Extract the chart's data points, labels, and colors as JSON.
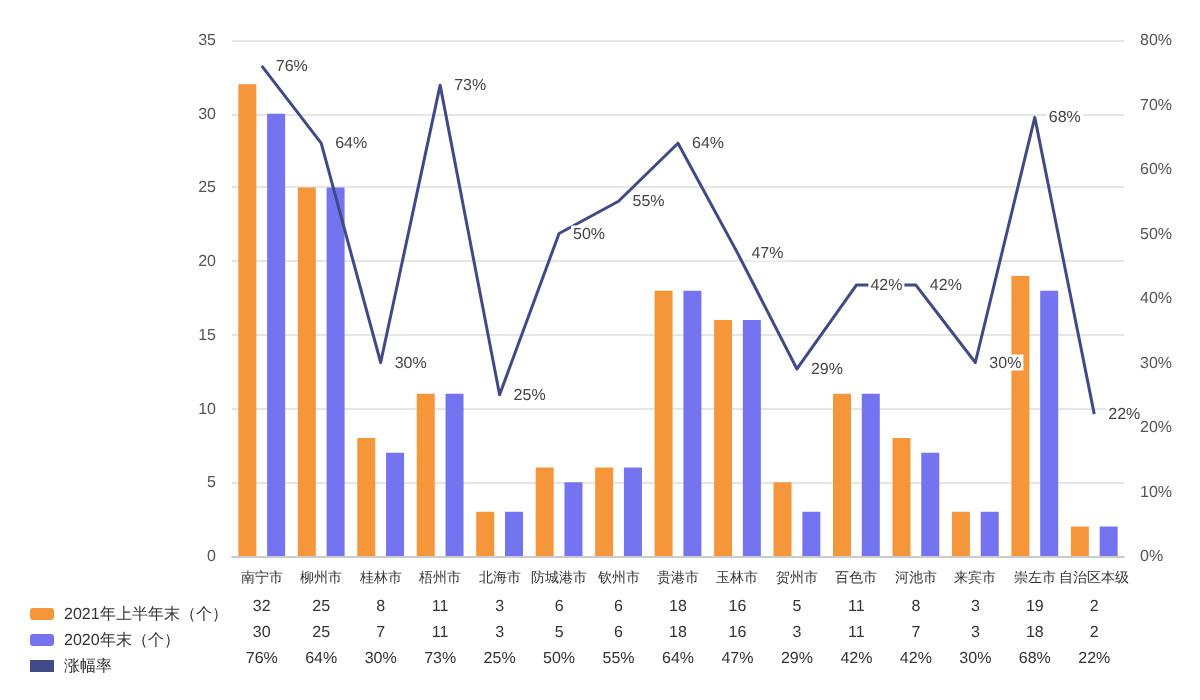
{
  "chart_data": {
    "type": "bar",
    "categories": [
      "南宁市",
      "柳州市",
      "桂林市",
      "梧州市",
      "北海市",
      "防城港市",
      "钦州市",
      "贵港市",
      "玉林市",
      "贺州市",
      "百色市",
      "河池市",
      "来宾市",
      "崇左市",
      "自治区本级"
    ],
    "series": [
      {
        "name": "2021年上半年末（个）",
        "color": "#f5963a",
        "values": [
          32,
          25,
          8,
          11,
          3,
          6,
          6,
          18,
          16,
          5,
          11,
          8,
          3,
          19,
          2
        ],
        "value_labels": [
          "32",
          "25",
          "8",
          "11",
          "3",
          "6",
          "6",
          "18",
          "16",
          "5",
          "11",
          "8",
          "3",
          "19",
          "2"
        ]
      },
      {
        "name": "2020年末（个）",
        "color": "#7474f0",
        "values": [
          30,
          25,
          7,
          11,
          3,
          5,
          6,
          18,
          16,
          3,
          11,
          7,
          3,
          18,
          2
        ],
        "value_labels": [
          "30",
          "25",
          "7",
          "11",
          "3",
          "5",
          "6",
          "18",
          "16",
          "3",
          "11",
          "7",
          "3",
          "18",
          "2"
        ]
      },
      {
        "name": "涨幅率",
        "type": "line",
        "axis": "y2",
        "color": "#3f4a86",
        "values": [
          76,
          64,
          30,
          73,
          25,
          50,
          55,
          64,
          47,
          29,
          42,
          42,
          30,
          68,
          22
        ],
        "value_labels": [
          "76%",
          "64%",
          "30%",
          "73%",
          "25%",
          "50%",
          "55%",
          "64%",
          "47%",
          "29%",
          "42%",
          "42%",
          "30%",
          "68%",
          "22%"
        ]
      }
    ],
    "ylim": [
      0,
      35
    ],
    "yticks": [
      0,
      5,
      10,
      15,
      20,
      25,
      30,
      35
    ],
    "y2lim": [
      0,
      80
    ],
    "y2ticks": [
      {
        "value": 0,
        "label": "0%"
      },
      {
        "value": 10,
        "label": "10%"
      },
      {
        "value": 20,
        "label": "20%"
      },
      {
        "value": 30,
        "label": "30%"
      },
      {
        "value": 40,
        "label": "40%"
      },
      {
        "value": 50,
        "label": "50%"
      },
      {
        "value": 60,
        "label": "60%"
      },
      {
        "value": 70,
        "label": "70%"
      },
      {
        "value": 80,
        "label": "80%"
      }
    ],
    "grid": "y",
    "legend": "bottom left",
    "marker": "none",
    "line_style": "solid"
  }
}
